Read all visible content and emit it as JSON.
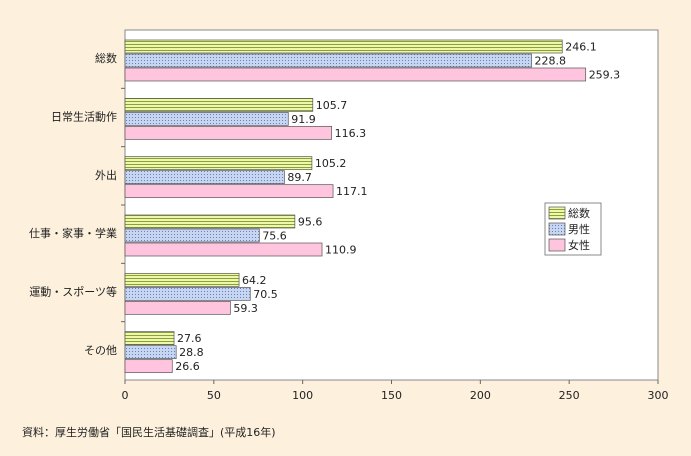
{
  "chart_data": {
    "type": "hbar",
    "categories": [
      "総数",
      "日常生活動作",
      "外出",
      "仕事・家事・学業",
      "運動・スポーツ等",
      "その他"
    ],
    "series": [
      {
        "name": "総数",
        "color": "#eef8a8",
        "values": [
          246.1,
          105.7,
          105.2,
          95.6,
          64.2,
          27.6
        ]
      },
      {
        "name": "男性",
        "color": "#c6d6f2",
        "values": [
          228.8,
          91.9,
          89.7,
          75.6,
          70.5,
          28.8
        ]
      },
      {
        "name": "女性",
        "color": "#ffc4de",
        "values": [
          259.3,
          116.3,
          117.1,
          110.9,
          59.3,
          26.6
        ]
      }
    ],
    "xlim": [
      0,
      300
    ],
    "xticks": [
      0,
      50,
      100,
      150,
      200,
      250,
      300
    ],
    "legend": "right",
    "note": "資料：厚生労働省「国民生活基礎調査」(平成16年)"
  }
}
